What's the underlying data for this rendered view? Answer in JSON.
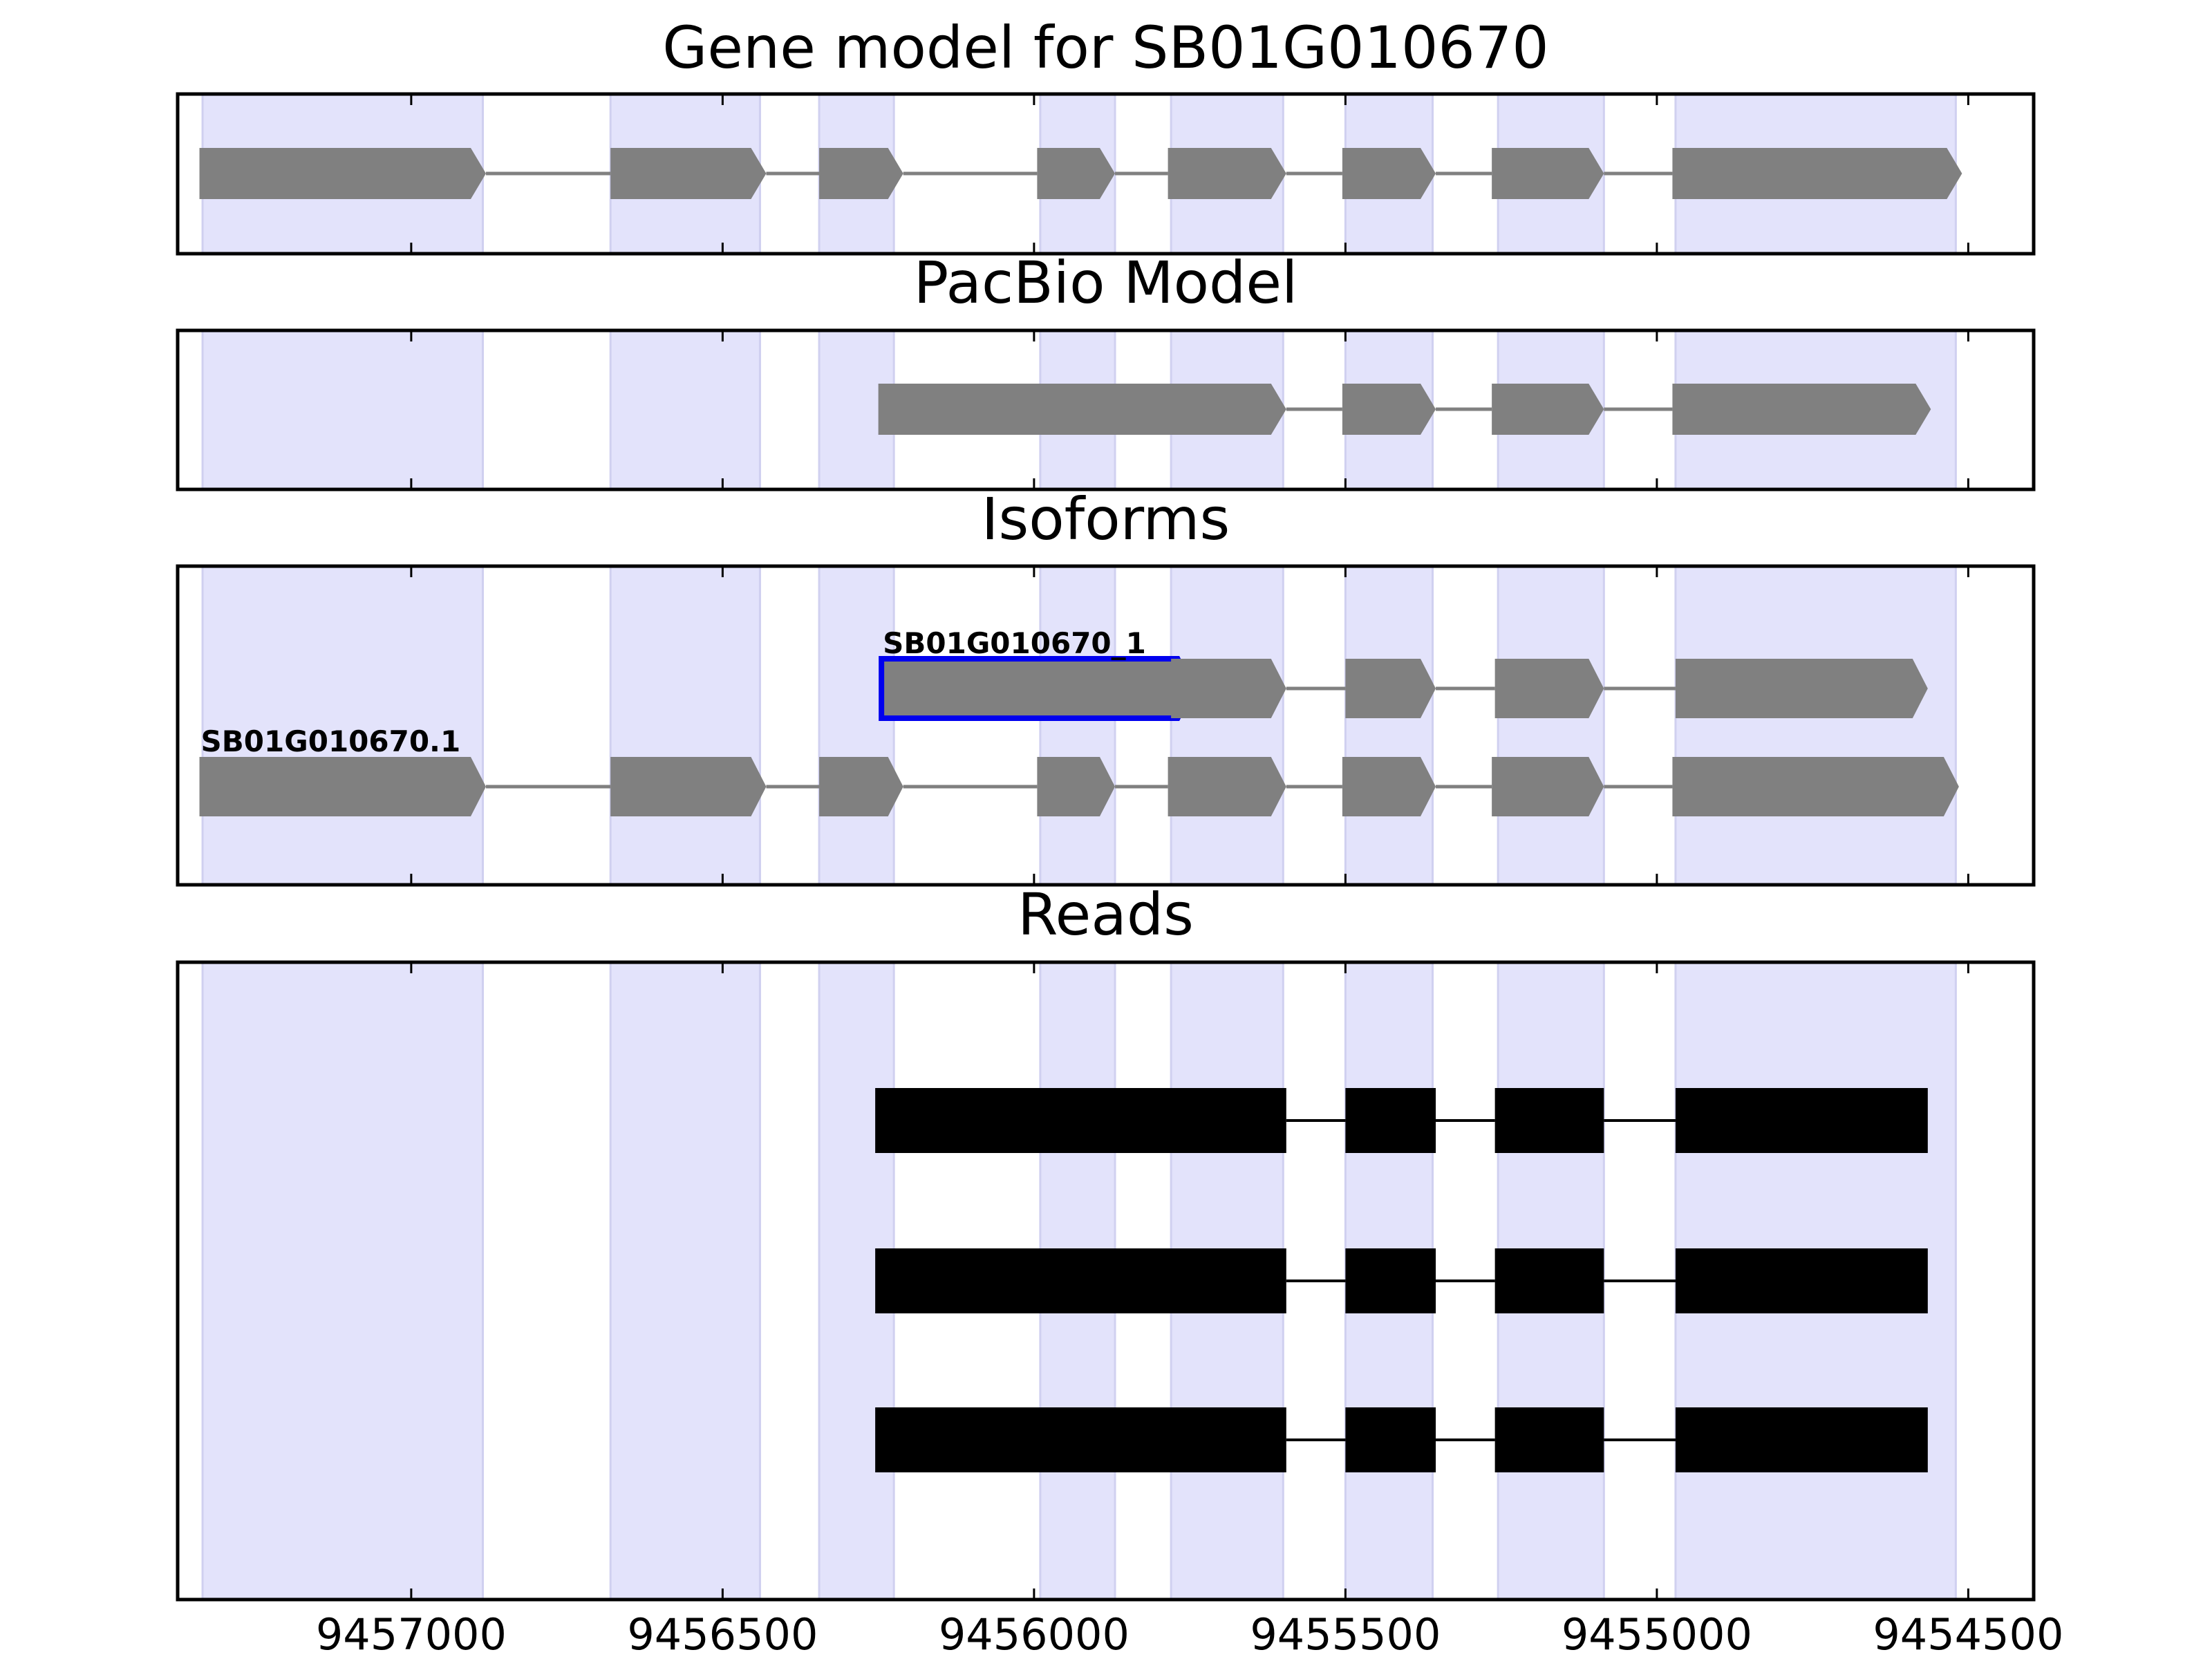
{
  "chart_data": {
    "type": "gene-structure",
    "title": "Gene model for SB01G010670",
    "x_axis": {
      "reversed": true,
      "xlim": [
        9457375,
        9454395
      ],
      "ticks": [
        9457000,
        9456500,
        9456000,
        9455500,
        9455000,
        9454500
      ],
      "tick_labels": [
        "9457000",
        "9456500",
        "9456000",
        "9455500",
        "9455000",
        "9454500"
      ]
    },
    "colors": {
      "highlight": "#e3e3fb",
      "highlight_edge": "#d0d0f0",
      "feature": "#808080",
      "read": "#000000",
      "selected_outline": "#0000ee",
      "intron": "#808080"
    },
    "highlight_regions": [
      [
        9457335,
        9456885
      ],
      [
        9456680,
        9456440
      ],
      [
        9456345,
        9456225
      ],
      [
        9455990,
        9455870
      ],
      [
        9455780,
        9455600
      ],
      [
        9455500,
        9455360
      ],
      [
        9455255,
        9455085
      ],
      [
        9454970,
        9454520
      ]
    ],
    "panels": [
      {
        "id": "gene",
        "title": "Gene model for SB01G010670",
        "tracks": [
          {
            "label": "",
            "exons": [
              [
                9457340,
                9456880
              ],
              [
                9456680,
                9456430
              ],
              [
                9456345,
                9456210
              ],
              [
                9455995,
                9455870
              ],
              [
                9455785,
                9455595
              ],
              [
                9455505,
                9455355
              ],
              [
                9455265,
                9455085
              ],
              [
                9454975,
                9454510
              ]
            ]
          }
        ]
      },
      {
        "id": "pacbio",
        "title": "PacBio Model",
        "tracks": [
          {
            "label": "",
            "exons": [
              [
                9456250,
                9455745
              ],
              [
                9455785,
                9455595
              ],
              [
                9455505,
                9455355
              ],
              [
                9455265,
                9455085
              ],
              [
                9454975,
                9454560
              ]
            ]
          }
        ]
      },
      {
        "id": "isoforms",
        "title": "Isoforms",
        "tracks": [
          {
            "label": "SB01G010670_1",
            "selected_first_exon": true,
            "exons": [
              [
                9456245,
                9455745
              ],
              [
                9455780,
                9455595
              ],
              [
                9455500,
                9455355
              ],
              [
                9455260,
                9455085
              ],
              [
                9454970,
                9454565
              ]
            ]
          },
          {
            "label": "SB01G010670.1",
            "exons": [
              [
                9457340,
                9456880
              ],
              [
                9456680,
                9456430
              ],
              [
                9456345,
                9456210
              ],
              [
                9455995,
                9455870
              ],
              [
                9455785,
                9455595
              ],
              [
                9455505,
                9455355
              ],
              [
                9455265,
                9455085
              ],
              [
                9454975,
                9454515
              ]
            ]
          }
        ]
      },
      {
        "id": "reads",
        "title": "Reads",
        "tracks": [
          {
            "label": "",
            "exons": [
              [
                9456255,
                9455750
              ],
              [
                9455785,
                9455595
              ],
              [
                9455500,
                9455355
              ],
              [
                9455260,
                9455085
              ],
              [
                9454970,
                9454565
              ]
            ]
          },
          {
            "label": "",
            "exons": [
              [
                9456255,
                9455750
              ],
              [
                9455785,
                9455595
              ],
              [
                9455500,
                9455355
              ],
              [
                9455260,
                9455085
              ],
              [
                9454970,
                9454565
              ]
            ]
          },
          {
            "label": "",
            "exons": [
              [
                9456255,
                9455750
              ],
              [
                9455785,
                9455595
              ],
              [
                9455500,
                9455355
              ],
              [
                9455260,
                9455085
              ],
              [
                9454970,
                9454565
              ]
            ]
          }
        ]
      }
    ]
  }
}
